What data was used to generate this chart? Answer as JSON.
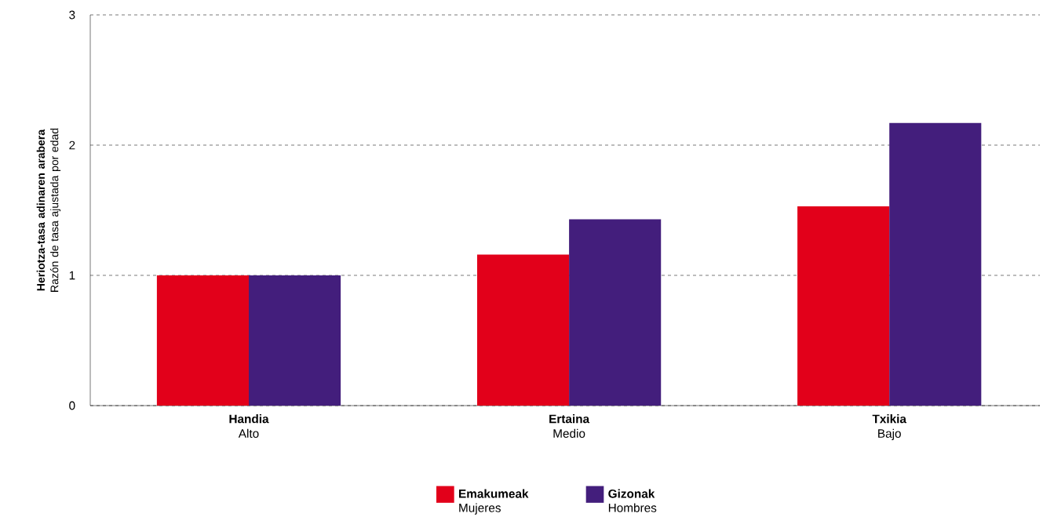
{
  "chart_data": {
    "type": "bar",
    "ylabel": "**Heriotza-tasa adinaren arabera** Razón de tasa ajustada por edad",
    "categories": [
      "**Handia** Alto",
      "**Ertaina** Medio",
      "**Txikia** Bajo"
    ],
    "series": [
      {
        "name": "**Emakumeak** Mujeres",
        "color": "#e2001a",
        "values": [
          1.0,
          1.16,
          1.53
        ]
      },
      {
        "name": "**Gizonak** Hombres",
        "color": "#431e7c",
        "values": [
          1.0,
          1.43,
          2.17
        ]
      }
    ],
    "ylim": [
      0,
      3
    ],
    "yticks": [
      0,
      1,
      2,
      3
    ],
    "grid": "y",
    "legend": "bottom"
  }
}
